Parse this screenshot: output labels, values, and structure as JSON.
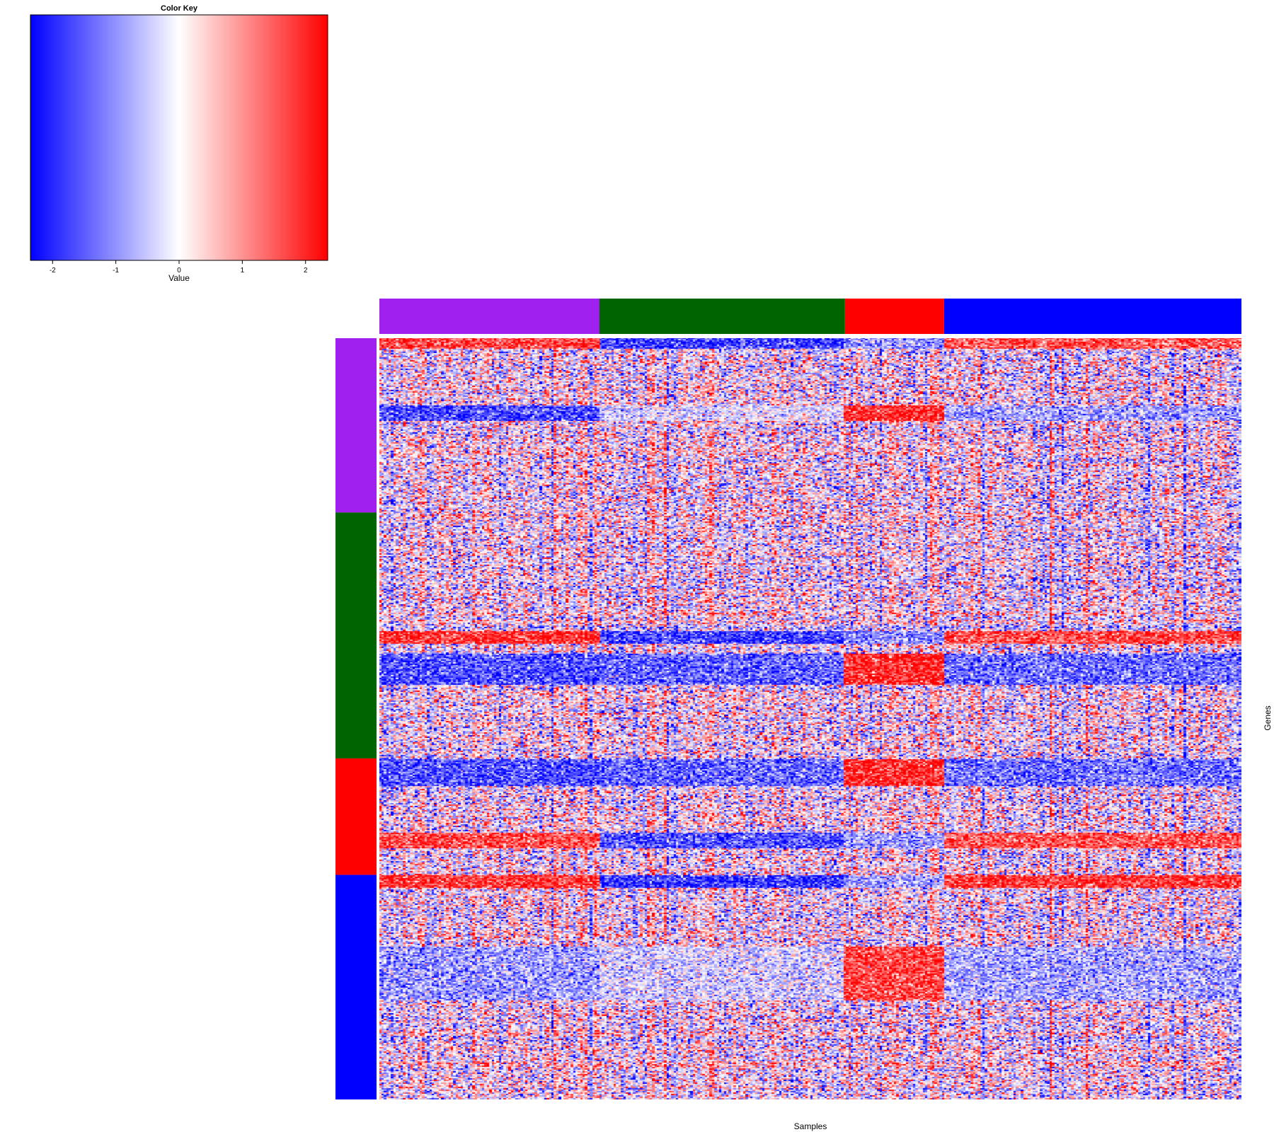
{
  "chart_data": {
    "type": "heatmap",
    "title": "",
    "xlabel": "Samples",
    "ylabel": "Genes",
    "color_key": {
      "title": "Color Key",
      "xlabel": "Value",
      "range": [
        -2.35,
        2.35
      ],
      "ticks": [
        -2,
        -1,
        0,
        1,
        2
      ],
      "tick_labels": [
        "-2",
        "-1",
        "0",
        "1",
        "2"
      ],
      "colors": [
        "#0000ff",
        "#ffffff",
        "#ff0000"
      ]
    },
    "column_groups": [
      {
        "name": "group-purple",
        "color": "#a020f0",
        "sample_fraction": 0.255
      },
      {
        "name": "group-green",
        "color": "#006400",
        "sample_fraction": 0.285
      },
      {
        "name": "group-red",
        "color": "#ff0000",
        "sample_fraction": 0.115
      },
      {
        "name": "group-blue",
        "color": "#0000ff",
        "sample_fraction": 0.345
      }
    ],
    "row_groups": [
      {
        "name": "group-purple",
        "color": "#a020f0",
        "gene_fraction": 0.229
      },
      {
        "name": "group-green",
        "color": "#006400",
        "gene_fraction": 0.323
      },
      {
        "name": "group-red",
        "color": "#ff0000",
        "gene_fraction": 0.153
      },
      {
        "name": "group-blue",
        "color": "#0000ff",
        "gene_fraction": 0.295
      }
    ],
    "pattern_bands": [
      {
        "rows": [
          0.0,
          0.015
        ],
        "column_group_means": [
          1.8,
          -1.8,
          -1.0,
          1.6
        ]
      },
      {
        "rows": [
          0.088,
          0.11
        ],
        "column_group_means": [
          -1.7,
          -0.3,
          2.0,
          -0.9
        ]
      },
      {
        "rows": [
          0.385,
          0.402
        ],
        "column_group_means": [
          1.9,
          -1.8,
          -1.1,
          1.7
        ]
      },
      {
        "rows": [
          0.415,
          0.455
        ],
        "column_group_means": [
          -1.6,
          -1.4,
          2.0,
          -1.3
        ]
      },
      {
        "rows": [
          0.553,
          0.588
        ],
        "column_group_means": [
          -1.6,
          -1.4,
          2.0,
          -1.3
        ]
      },
      {
        "rows": [
          0.65,
          0.67
        ],
        "column_group_means": [
          1.7,
          -1.6,
          -0.9,
          1.6
        ]
      },
      {
        "rows": [
          0.705,
          0.722
        ],
        "column_group_means": [
          1.9,
          -1.9,
          -0.8,
          1.9
        ]
      },
      {
        "rows": [
          0.8,
          0.87
        ],
        "column_group_means": [
          -0.9,
          -0.4,
          1.7,
          -0.8
        ]
      }
    ]
  }
}
